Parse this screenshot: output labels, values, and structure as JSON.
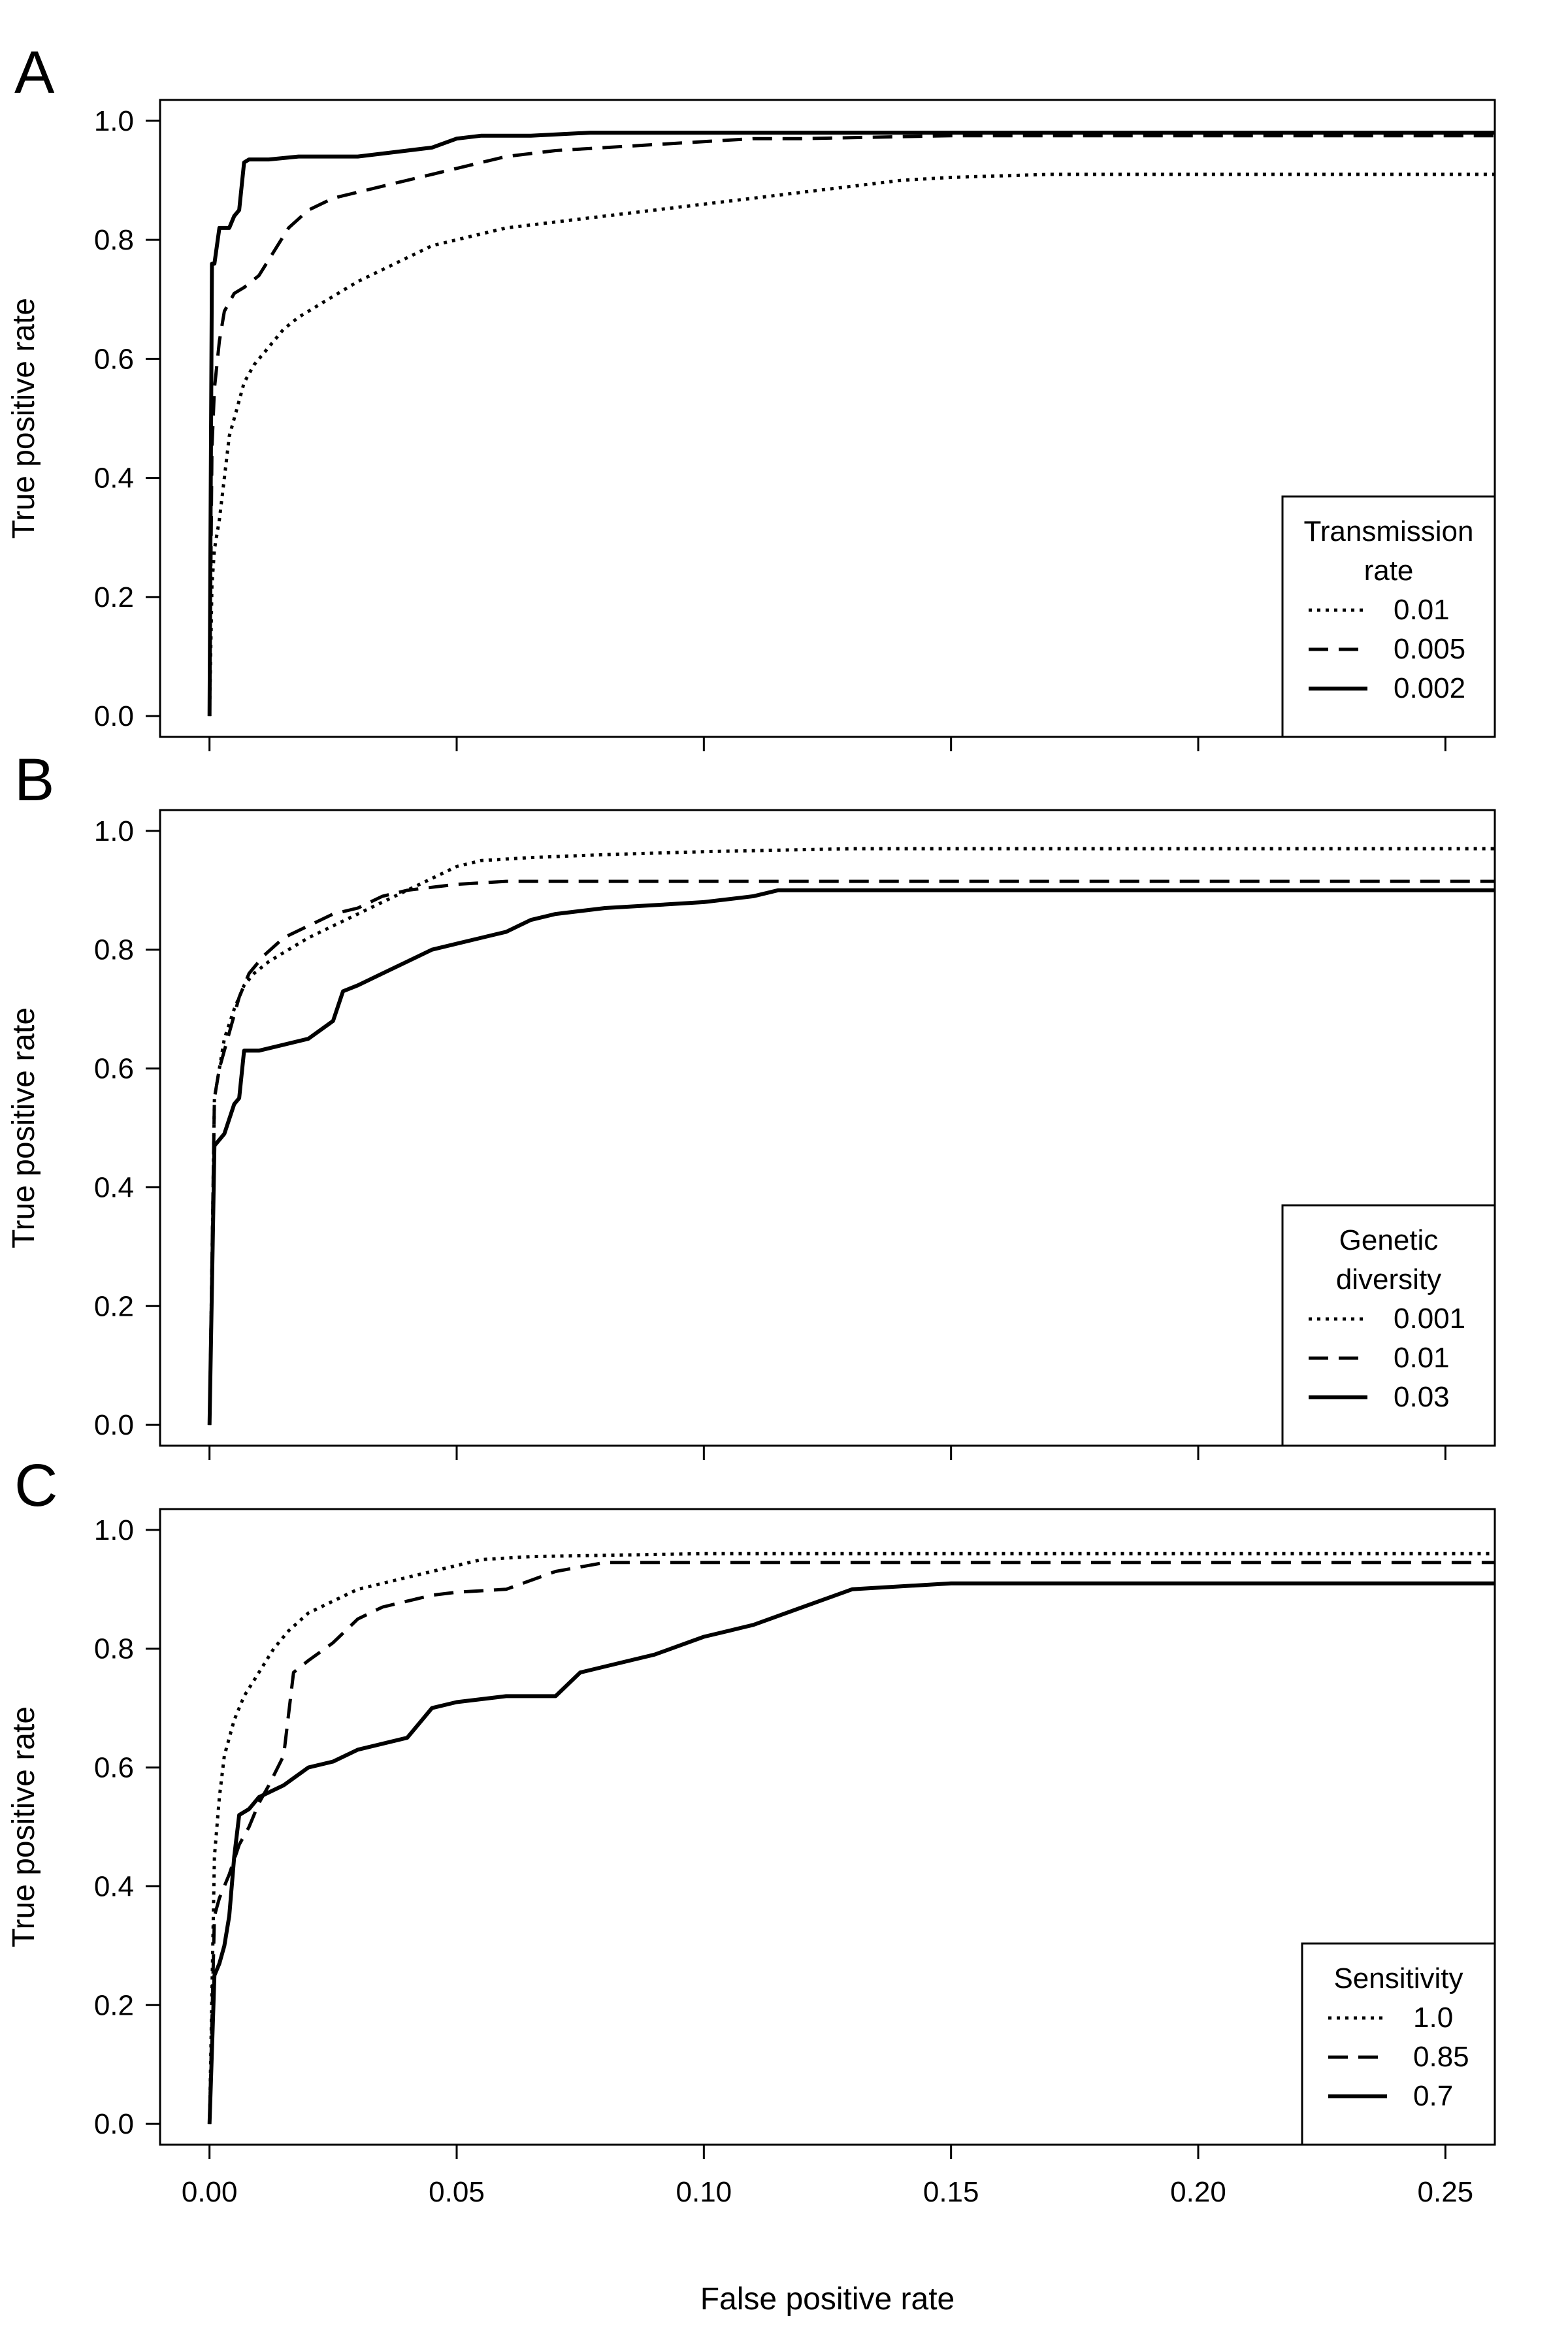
{
  "figure": {
    "xlabel": "False positive rate",
    "ylabel": "True positive rate"
  },
  "chart_data": [
    {
      "type": "line",
      "panel": "A",
      "xlabel": "False positive rate",
      "ylabel": "True positive rate",
      "xlim": [
        -0.01,
        0.26
      ],
      "ylim": [
        -0.035,
        1.035
      ],
      "x_ticks": [
        "0.00",
        "0.05",
        "0.10",
        "0.15",
        "0.20",
        "0.25"
      ],
      "y_ticks": [
        "0.0",
        "0.2",
        "0.4",
        "0.6",
        "0.8",
        "1.0"
      ],
      "legend": {
        "title": [
          "Transmission",
          "rate"
        ],
        "position": "bottom-right"
      },
      "series": [
        {
          "name": "0.01",
          "style": "dotted",
          "x": [
            0,
            0.0005,
            0.001,
            0.002,
            0.003,
            0.004,
            0.005,
            0.006,
            0.007,
            0.009,
            0.012,
            0.015,
            0.018,
            0.022,
            0.026,
            0.03,
            0.035,
            0.04,
            0.045,
            0.05,
            0.055,
            0.06,
            0.07,
            0.08,
            0.09,
            0.1,
            0.11,
            0.12,
            0.13,
            0.14,
            0.15,
            0.17,
            0.2,
            0.26
          ],
          "y": [
            0,
            0.22,
            0.28,
            0.33,
            0.4,
            0.47,
            0.5,
            0.53,
            0.56,
            0.59,
            0.62,
            0.65,
            0.67,
            0.69,
            0.71,
            0.73,
            0.75,
            0.77,
            0.79,
            0.8,
            0.81,
            0.82,
            0.83,
            0.84,
            0.85,
            0.86,
            0.87,
            0.88,
            0.89,
            0.9,
            0.905,
            0.91,
            0.91,
            0.91
          ]
        },
        {
          "name": "0.005",
          "style": "dashed",
          "x": [
            0,
            0.0005,
            0.001,
            0.002,
            0.003,
            0.005,
            0.007,
            0.01,
            0.013,
            0.016,
            0.02,
            0.025,
            0.03,
            0.035,
            0.04,
            0.045,
            0.05,
            0.055,
            0.06,
            0.07,
            0.08,
            0.09,
            0.1,
            0.11,
            0.12,
            0.15,
            0.2,
            0.26
          ],
          "y": [
            0,
            0.45,
            0.55,
            0.63,
            0.68,
            0.71,
            0.72,
            0.74,
            0.78,
            0.82,
            0.85,
            0.87,
            0.88,
            0.89,
            0.9,
            0.91,
            0.92,
            0.93,
            0.94,
            0.95,
            0.955,
            0.96,
            0.965,
            0.97,
            0.97,
            0.975,
            0.975,
            0.975
          ]
        },
        {
          "name": "0.002",
          "style": "solid",
          "x": [
            0,
            0.0005,
            0.001,
            0.002,
            0.004,
            0.005,
            0.006,
            0.007,
            0.008,
            0.012,
            0.018,
            0.03,
            0.04,
            0.045,
            0.05,
            0.055,
            0.065,
            0.077,
            0.1,
            0.26
          ],
          "y": [
            0,
            0.76,
            0.76,
            0.82,
            0.82,
            0.84,
            0.85,
            0.93,
            0.935,
            0.935,
            0.94,
            0.94,
            0.95,
            0.955,
            0.97,
            0.975,
            0.975,
            0.98,
            0.98,
            0.98
          ]
        }
      ]
    },
    {
      "type": "line",
      "panel": "B",
      "xlabel": "False positive rate",
      "ylabel": "True positive rate",
      "xlim": [
        -0.01,
        0.26
      ],
      "ylim": [
        -0.035,
        1.035
      ],
      "x_ticks": [
        "0.00",
        "0.05",
        "0.10",
        "0.15",
        "0.20",
        "0.25"
      ],
      "y_ticks": [
        "0.0",
        "0.2",
        "0.4",
        "0.6",
        "0.8",
        "1.0"
      ],
      "legend": {
        "title": [
          "Genetic",
          "diversity"
        ],
        "position": "bottom-right"
      },
      "series": [
        {
          "name": "0.001",
          "style": "dotted",
          "x": [
            0,
            0.001,
            0.002,
            0.003,
            0.005,
            0.007,
            0.009,
            0.012,
            0.016,
            0.02,
            0.025,
            0.03,
            0.035,
            0.04,
            0.045,
            0.05,
            0.055,
            0.065,
            0.08,
            0.1,
            0.13,
            0.26
          ],
          "y": [
            0,
            0.55,
            0.6,
            0.65,
            0.7,
            0.74,
            0.76,
            0.78,
            0.8,
            0.82,
            0.84,
            0.86,
            0.88,
            0.9,
            0.92,
            0.94,
            0.95,
            0.955,
            0.96,
            0.965,
            0.97,
            0.97
          ]
        },
        {
          "name": "0.01",
          "style": "dashed",
          "x": [
            0,
            0.001,
            0.002,
            0.004,
            0.006,
            0.008,
            0.011,
            0.015,
            0.02,
            0.025,
            0.03,
            0.035,
            0.04,
            0.045,
            0.05,
            0.06,
            0.08,
            0.26
          ],
          "y": [
            0,
            0.55,
            0.6,
            0.66,
            0.72,
            0.76,
            0.79,
            0.82,
            0.84,
            0.86,
            0.87,
            0.89,
            0.9,
            0.905,
            0.91,
            0.915,
            0.915,
            0.915
          ]
        },
        {
          "name": "0.03",
          "style": "solid",
          "x": [
            0,
            0.001,
            0.002,
            0.003,
            0.005,
            0.006,
            0.007,
            0.01,
            0.015,
            0.02,
            0.025,
            0.027,
            0.03,
            0.035,
            0.04,
            0.045,
            0.05,
            0.055,
            0.06,
            0.065,
            0.07,
            0.08,
            0.09,
            0.1,
            0.11,
            0.115,
            0.26
          ],
          "y": [
            0,
            0.47,
            0.48,
            0.49,
            0.54,
            0.55,
            0.63,
            0.63,
            0.64,
            0.65,
            0.68,
            0.73,
            0.74,
            0.76,
            0.78,
            0.8,
            0.81,
            0.82,
            0.83,
            0.85,
            0.86,
            0.87,
            0.875,
            0.88,
            0.89,
            0.9,
            0.9
          ]
        }
      ]
    },
    {
      "type": "line",
      "panel": "C",
      "xlabel": "False positive rate",
      "ylabel": "True positive rate",
      "xlim": [
        -0.01,
        0.26
      ],
      "ylim": [
        -0.035,
        1.035
      ],
      "x_ticks": [
        "0.00",
        "0.05",
        "0.10",
        "0.15",
        "0.20",
        "0.25"
      ],
      "y_ticks": [
        "0.0",
        "0.2",
        "0.4",
        "0.6",
        "0.8",
        "1.0"
      ],
      "legend": {
        "title": [
          "Sensitivity"
        ],
        "position": "bottom-right"
      },
      "series": [
        {
          "name": "1.0",
          "style": "dotted",
          "x": [
            0,
            0.001,
            0.002,
            0.003,
            0.005,
            0.007,
            0.01,
            0.013,
            0.016,
            0.02,
            0.025,
            0.03,
            0.035,
            0.04,
            0.045,
            0.05,
            0.055,
            0.065,
            0.1,
            0.26
          ],
          "y": [
            0,
            0.45,
            0.55,
            0.62,
            0.68,
            0.72,
            0.76,
            0.8,
            0.83,
            0.86,
            0.88,
            0.9,
            0.91,
            0.92,
            0.93,
            0.94,
            0.95,
            0.955,
            0.96,
            0.96
          ]
        },
        {
          "name": "0.85",
          "style": "dashed",
          "x": [
            0,
            0.001,
            0.002,
            0.004,
            0.006,
            0.008,
            0.01,
            0.012,
            0.015,
            0.017,
            0.02,
            0.025,
            0.03,
            0.035,
            0.04,
            0.045,
            0.05,
            0.06,
            0.07,
            0.08,
            0.1,
            0.26
          ],
          "y": [
            0,
            0.35,
            0.38,
            0.42,
            0.47,
            0.5,
            0.54,
            0.57,
            0.62,
            0.76,
            0.78,
            0.81,
            0.85,
            0.87,
            0.88,
            0.89,
            0.895,
            0.9,
            0.93,
            0.945,
            0.945,
            0.945
          ]
        },
        {
          "name": "0.7",
          "style": "solid",
          "x": [
            0,
            0.001,
            0.002,
            0.003,
            0.004,
            0.005,
            0.006,
            0.008,
            0.01,
            0.015,
            0.02,
            0.025,
            0.03,
            0.035,
            0.04,
            0.045,
            0.05,
            0.06,
            0.07,
            0.075,
            0.08,
            0.09,
            0.1,
            0.105,
            0.11,
            0.12,
            0.13,
            0.15,
            0.26
          ],
          "y": [
            0,
            0.25,
            0.27,
            0.3,
            0.35,
            0.45,
            0.52,
            0.53,
            0.55,
            0.57,
            0.6,
            0.61,
            0.63,
            0.64,
            0.65,
            0.7,
            0.71,
            0.72,
            0.72,
            0.76,
            0.77,
            0.79,
            0.82,
            0.83,
            0.84,
            0.87,
            0.9,
            0.91,
            0.91
          ]
        }
      ]
    }
  ]
}
